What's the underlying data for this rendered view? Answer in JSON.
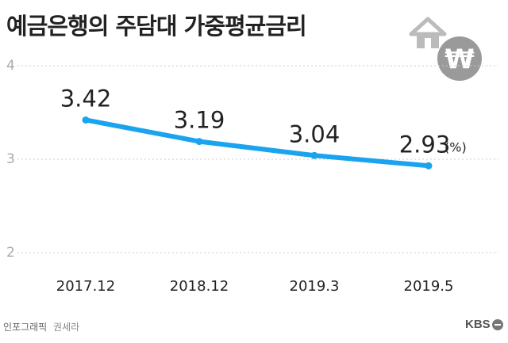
{
  "title": "예금은행의 주담대 가중평균금리",
  "unit_label": "(%)",
  "footer": {
    "credit": "인포그래픽",
    "author": "권세라",
    "logo": "KBS"
  },
  "decoration": {
    "house_icon": "house-icon",
    "won_icon": "won-coin-icon",
    "won_symbol": "₩",
    "house_color": "#bbbbbb",
    "coin_color": "#9a9a9a"
  },
  "colors": {
    "line": "#1aa3ee",
    "grid": "#cccccc",
    "tick_text": "#aaaaaa",
    "label_text": "#222222"
  },
  "chart_data": {
    "type": "line",
    "title": "예금은행의 주담대 가중평균금리",
    "xlabel": "",
    "ylabel": "",
    "categories": [
      "2017.12",
      "2018.12",
      "2019.3",
      "2019.5"
    ],
    "series": [
      {
        "values": [
          3.42,
          3.19,
          3.04,
          2.93
        ]
      }
    ],
    "data_labels": [
      "3.42",
      "3.19",
      "3.04",
      "2.93"
    ],
    "yticks": [
      2,
      3,
      4
    ],
    "ylim": [
      2,
      4
    ],
    "grid": true,
    "legend": "none"
  }
}
